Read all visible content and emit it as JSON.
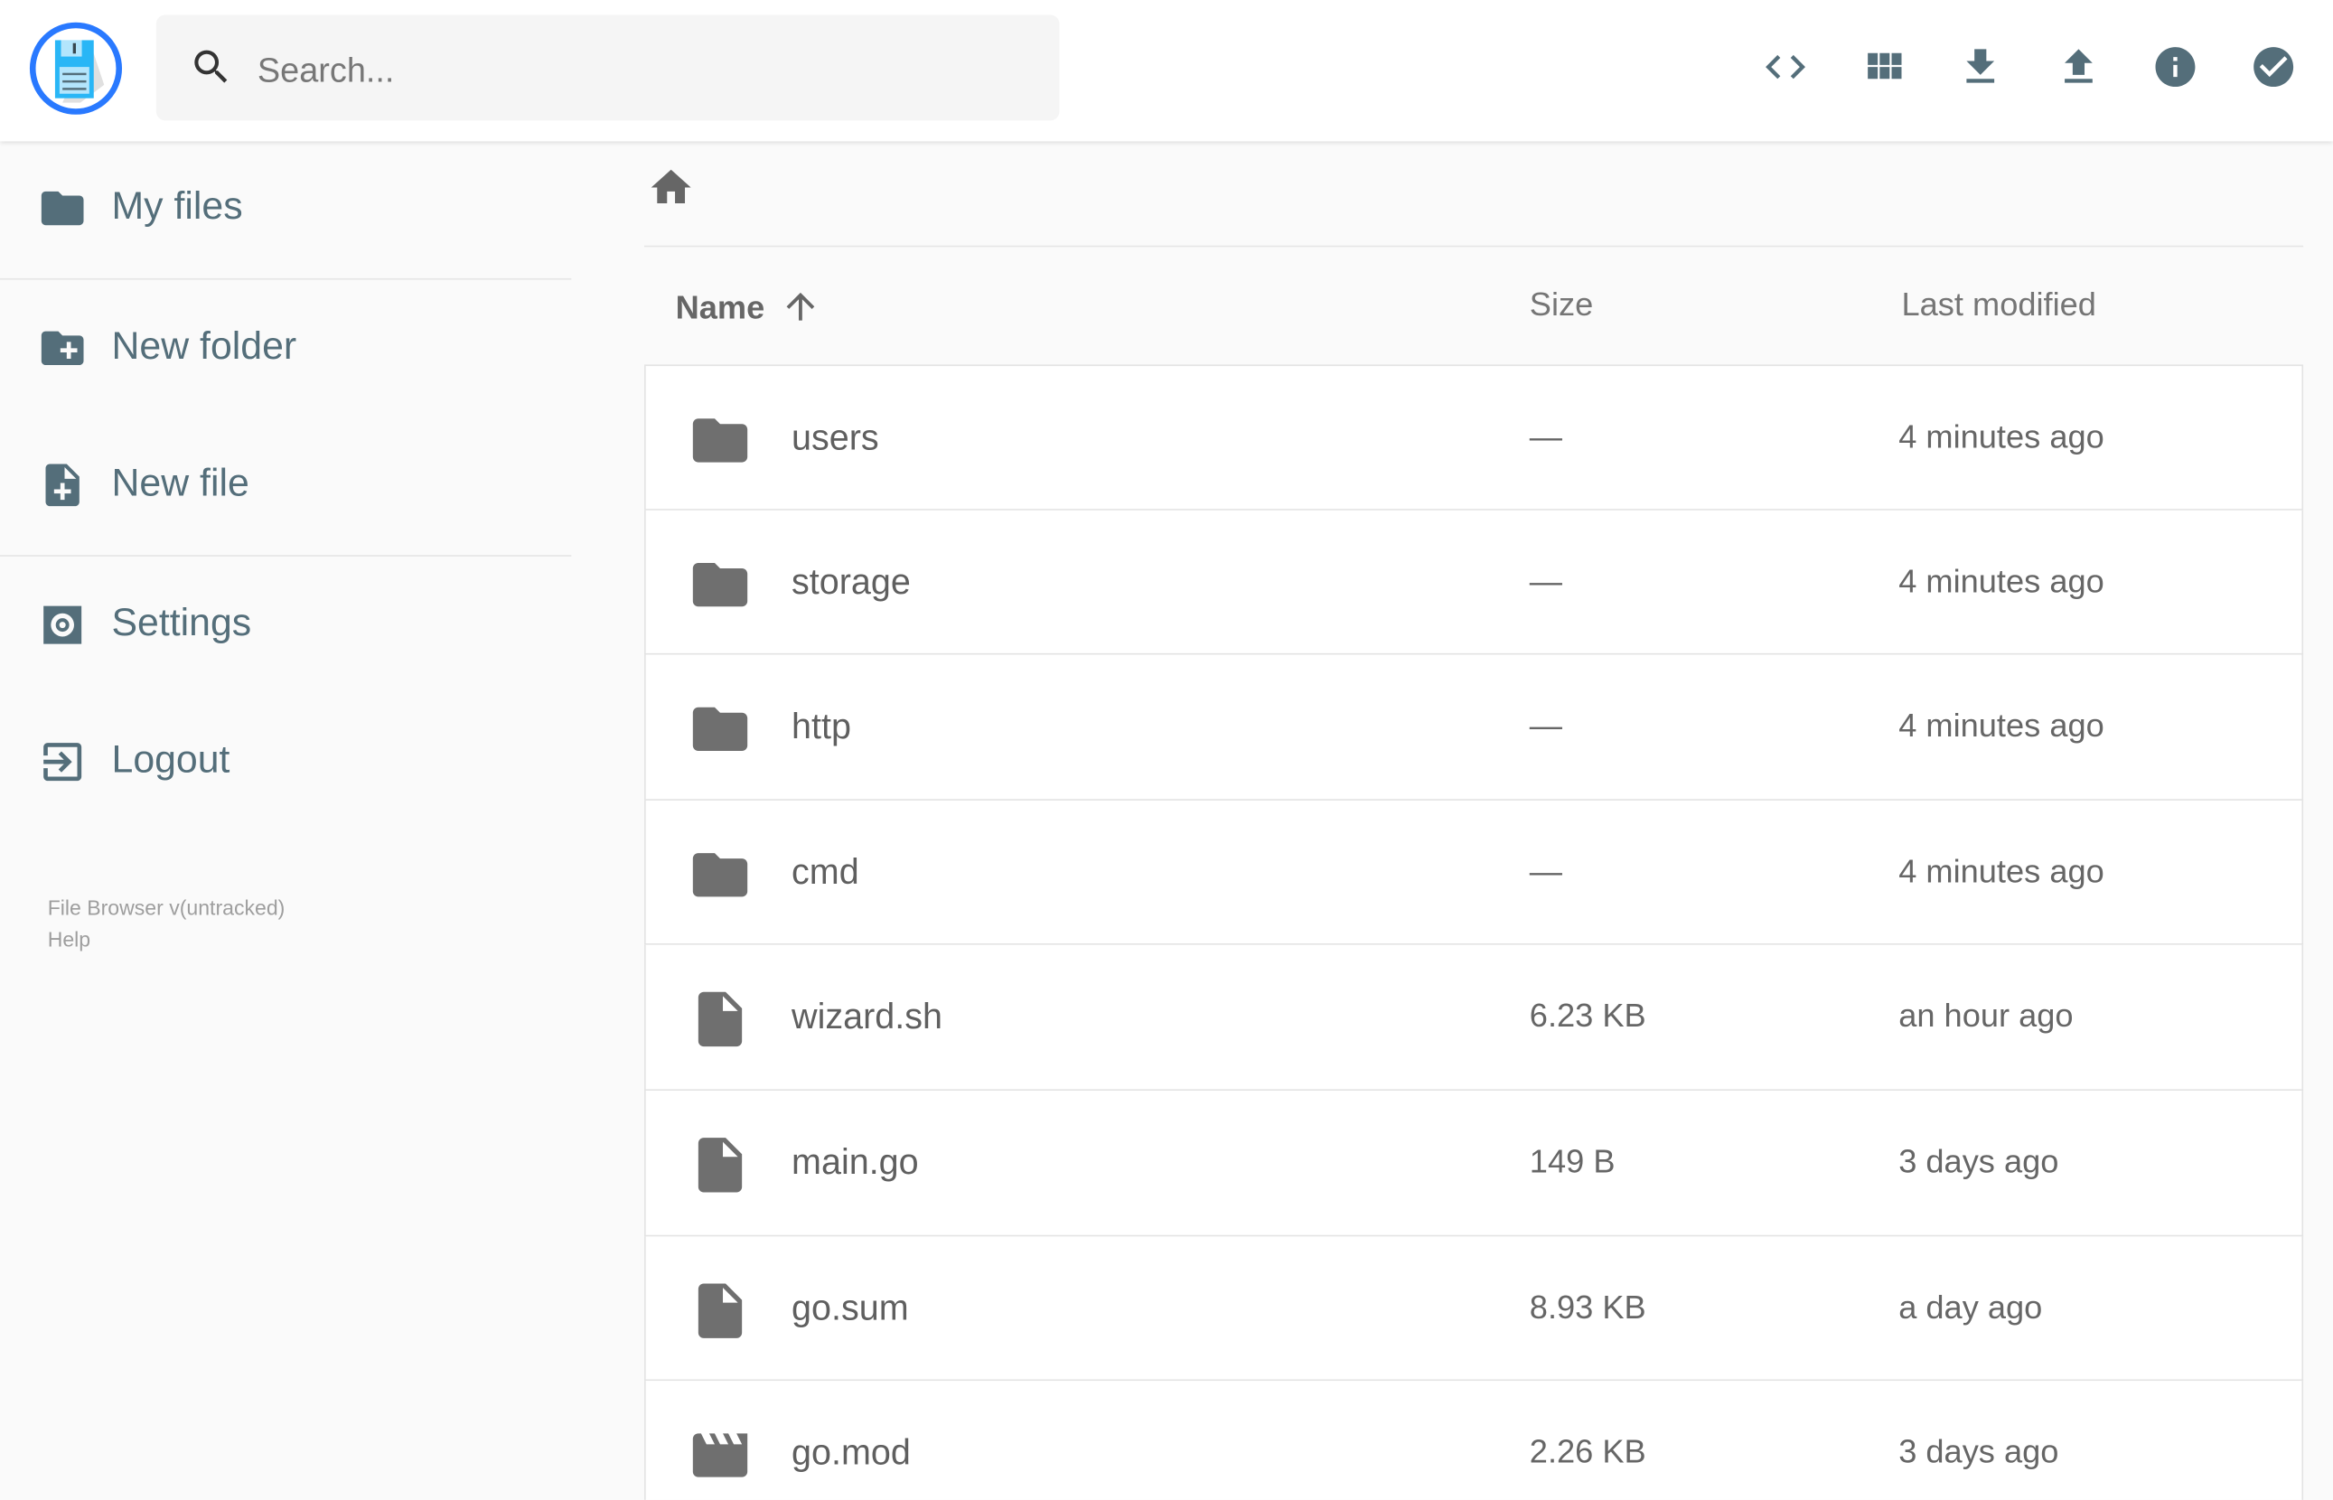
{
  "header": {
    "search_placeholder": "Search...",
    "actions": [
      {
        "name": "code-view",
        "icon": "code-icon"
      },
      {
        "name": "view-mode",
        "icon": "grid-icon"
      },
      {
        "name": "download",
        "icon": "download-icon"
      },
      {
        "name": "upload",
        "icon": "upload-icon"
      },
      {
        "name": "info",
        "icon": "info-icon"
      },
      {
        "name": "select",
        "icon": "check-circle-icon"
      }
    ]
  },
  "sidebar": {
    "items": [
      {
        "label": "My files",
        "icon": "folder-icon"
      },
      {
        "label": "New folder",
        "icon": "create-new-folder-icon"
      },
      {
        "label": "New file",
        "icon": "note-add-icon"
      },
      {
        "label": "Settings",
        "icon": "settings-icon"
      },
      {
        "label": "Logout",
        "icon": "exit-icon"
      }
    ],
    "footer": {
      "version": "File Browser v(untracked)",
      "help": "Help"
    }
  },
  "listing": {
    "columns": {
      "name": "Name",
      "size": "Size",
      "modified": "Last modified"
    },
    "sort": "name-ascending",
    "rows": [
      {
        "name": "users",
        "type": "folder",
        "size": "—",
        "modified": "4 minutes ago"
      },
      {
        "name": "storage",
        "type": "folder",
        "size": "—",
        "modified": "4 minutes ago"
      },
      {
        "name": "http",
        "type": "folder",
        "size": "—",
        "modified": "4 minutes ago"
      },
      {
        "name": "cmd",
        "type": "folder",
        "size": "—",
        "modified": "4 minutes ago"
      },
      {
        "name": "wizard.sh",
        "type": "file",
        "size": "6.23 KB",
        "modified": "an hour ago"
      },
      {
        "name": "main.go",
        "type": "file",
        "size": "149 B",
        "modified": "3 days ago"
      },
      {
        "name": "go.sum",
        "type": "file",
        "size": "8.93 KB",
        "modified": "a day ago"
      },
      {
        "name": "go.mod",
        "type": "video",
        "size": "2.26 KB",
        "modified": "3 days ago"
      }
    ]
  },
  "colors": {
    "accent": "#2979ff",
    "icon": "#546e7a"
  }
}
